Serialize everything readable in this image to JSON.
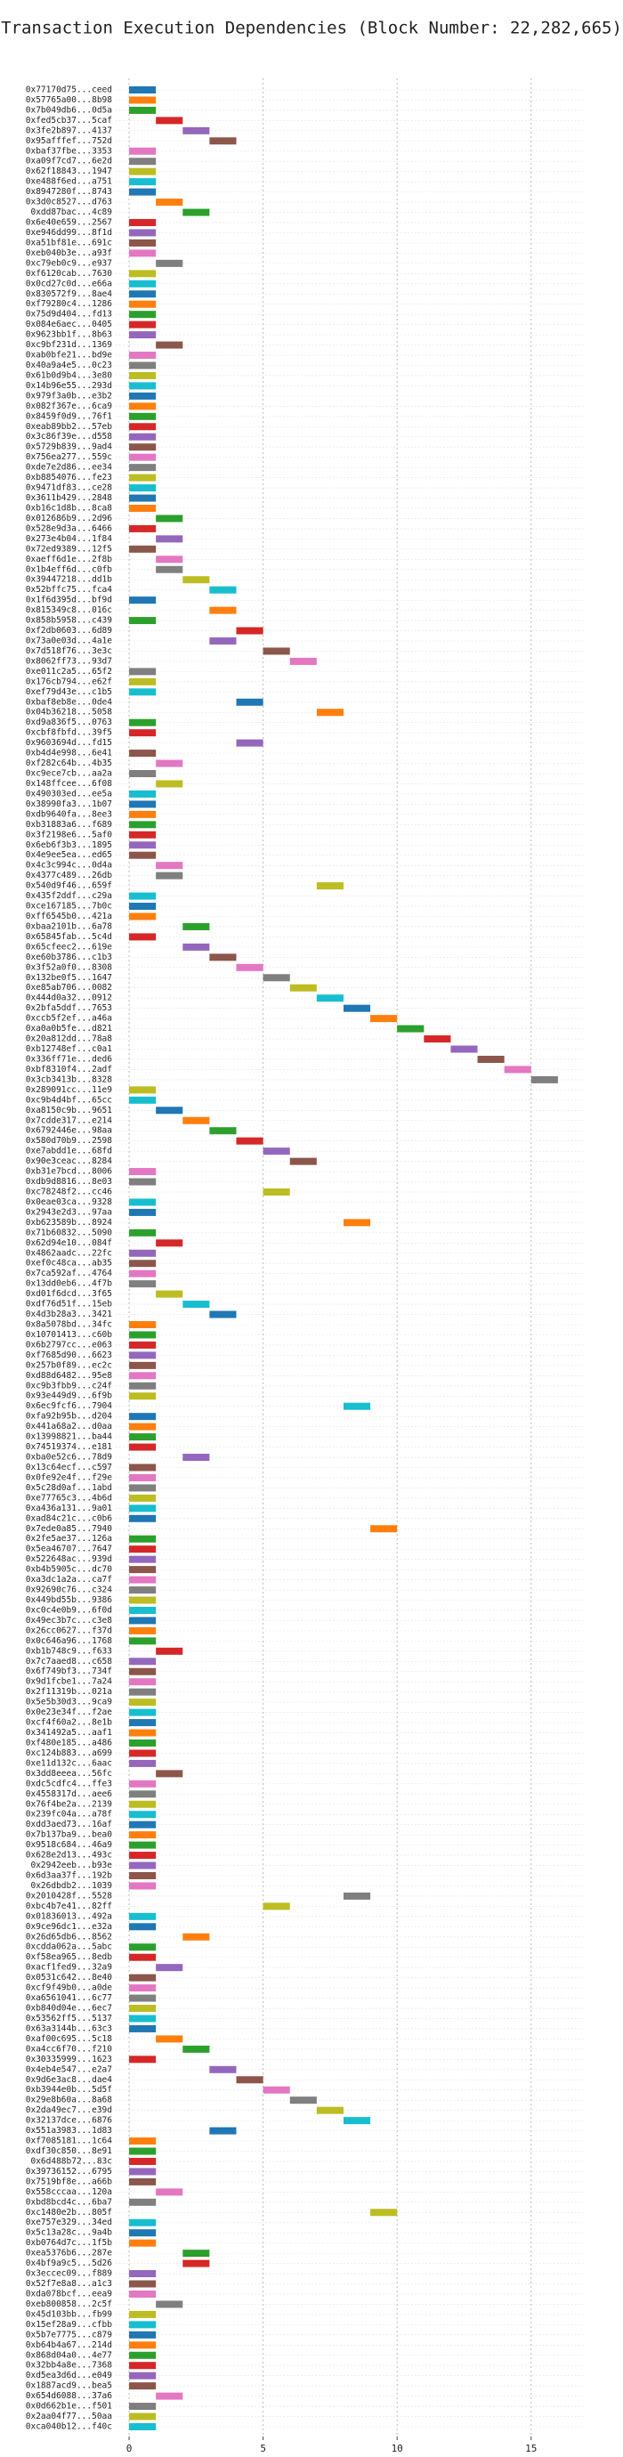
{
  "chart_data": {
    "type": "gantt",
    "title": "Transaction Execution Dependencies (Block Number: 22,282,665)",
    "categories": [
      "0x77170d75...ceed",
      "0x57765a00...8b98",
      "0x7b049db6...0d5a",
      "0xfed5cb37...5caf",
      "0x3fe2b897...4137",
      "0x95afffef...752d",
      "0xbaf37fbe...3353",
      "0xa09f7cd7...6e2d",
      "0x62f18843...1947",
      "0xe488f6ed...a751",
      "0x8947280f...8743",
      "0x3d0c8527...d763",
      "0xdd87bac...4c89",
      "0x6e40e659...2567",
      "0xe946dd99...8f1d",
      "0xa51bf81e...691c",
      "0xeb040b3e...a93f",
      "0xc79eb0c9...e937",
      "0xf6120cab...7630",
      "0x0cd27c0d...e66a",
      "0x830572f9...8ae4",
      "0xf79280c4...1286",
      "0x75d9d404...fd13",
      "0x084e6aec...0405",
      "0x9623bb1f...8b63",
      "0xc9bf231d...1369",
      "0xab0bfe21...bd9e",
      "0x40a9a4e5...0c23",
      "0x61b0d9b4...3e80",
      "0x14b96e55...293d",
      "0x979f3a0b...e3b2",
      "0x082f367e...6ca9",
      "0x8459f0d9...76f1",
      "0xeab89bb2...57eb",
      "0x3c86f39e...d558",
      "0x5729b839...9ad4",
      "0x756ea277...559c",
      "0xde7e2d86...ee34",
      "0xb8854076...fe23",
      "0x9471df83...ce28",
      "0x3611b429...2848",
      "0xb16c1d8b...8ca8",
      "0x012686b9...2d96",
      "0x528e9d3a...6466",
      "0x273e4b04...1f84",
      "0x72ed9389...12f5",
      "0xaeff6d1e...2f8b",
      "0x1b4eff6d...c0fb",
      "0x39447218...dd1b",
      "0x52bffc75...fca4",
      "0x1f6d395d...bf9d",
      "0x815349c8...016c",
      "0x858b5958...c439",
      "0xf2db0603...6d89",
      "0x73a0e03d...4a1e",
      "0x7d518f76...3e3c",
      "0x8062ff73...93d7",
      "0xe011c2a5...65f2",
      "0x176cb794...e62f",
      "0xef79d43e...c1b5",
      "0xbaf8eb8e...0de4",
      "0x04b36218...5058",
      "0xd9a836f5...0763",
      "0xcbf8fbfd...39f5",
      "0x9603694d...fd15",
      "0xb4d4e998...6e41",
      "0xf282c64b...4b35",
      "0xc9ece7cb...aa2a",
      "0x148ffcee...6f08",
      "0x490303ed...ee5a",
      "0x38990fa3...1b07",
      "0xdb9640fa...8ee3",
      "0xb31883a6...f689",
      "0x3f2198e6...5af0",
      "0x6eb6f3b3...1895",
      "0x4e9ee5ea...ed65",
      "0x4c3c994c...0d4a",
      "0x4377c489...26db",
      "0x540d9f46...659f",
      "0x435f2ddf...c29a",
      "0xce167185...7b0c",
      "0xff6545b0...421a",
      "0xbaa2101b...6a78",
      "0x65845fab...5c4d",
      "0x65cfeec2...619e",
      "0xe60b3786...c1b3",
      "0x3f52a0f0...8308",
      "0x132be0f5...1647",
      "0xe85ab706...0082",
      "0x444d0a32...0912",
      "0x2bfa5ddf...7653",
      "0xccb5f2ef...a46a",
      "0xa0a0b5fe...d821",
      "0x20a812dd...78a8",
      "0xb12748ef...c0a1",
      "0x336ff71e...ded6",
      "0xbf8310f4...2adf",
      "0x3cb3413b...8328",
      "0x289091cc...11e9",
      "0xc9b4d4bf...65cc",
      "0xa8150c9b...9651",
      "0x7cdde317...e214",
      "0x6792446e...98aa",
      "0x580d70b9...2598",
      "0xe7abdd1e...68fd",
      "0x90e3ceac...8284",
      "0xb31e7bcd...8006",
      "0xdb9d8816...8e03",
      "0xc78248f2...cc46",
      "0x0eae03ca...9328",
      "0x2943e2d3...97aa",
      "0xb623589b...8924",
      "0x71b60832...5090",
      "0x62d94e10...084f",
      "0x4862aadc...22fc",
      "0xef0c48ca...ab35",
      "0x7ca592af...4764",
      "0x13dd0eb6...4f7b",
      "0xd01f6dcd...3f65",
      "0xdf76d51f...15eb",
      "0x4d3b28a3...3421",
      "0x8a5078bd...34fc",
      "0x10701413...c60b",
      "0x6b2797cc...e063",
      "0xf7685d90...6623",
      "0x257b0f89...ec2c",
      "0xd88d6482...95e8",
      "0xc9b3fbb9...c24f",
      "0x93e449d9...6f9b",
      "0x6ec9fcf6...7904",
      "0xfa92b95b...d204",
      "0x441a68a2...d0aa",
      "0x13998821...ba44",
      "0x74519374...e181",
      "0xba0e52c6...78d9",
      "0x13c64ecf...c597",
      "0x0fe92e4f...f29e",
      "0x5c28d0af...1abd",
      "0xe77765c3...4b6d",
      "0xa436a131...9a01",
      "0xad84c21c...c0b6",
      "0x7ede0a85...7940",
      "0x2fe5ae37...126a",
      "0x5ea46707...7647",
      "0x522648ac...939d",
      "0xb4b5905c...dc70",
      "0xa3dc1a2a...ca7f",
      "0x92690c76...c324",
      "0x449bd55b...9386",
      "0xc0c4e0b9...6f0d",
      "0x49ec3b7c...c3e8",
      "0x26cc0627...f37d",
      "0x0c646a96...1768",
      "0xb1b748c9...f633",
      "0x7c7aaed8...c658",
      "0x6f749bf3...734f",
      "0x9d1fcbe1...7a24",
      "0x2f11319b...021a",
      "0x5e5b30d3...9ca9",
      "0x0e23e34f...f2ae",
      "0xcf4f60a2...8e1b",
      "0x341492a5...aaf1",
      "0xf480e185...a486",
      "0xc124b883...a699",
      "0xe11d132c...6aac",
      "0x3dd8eeea...56fc",
      "0xdc5cdfc4...ffe3",
      "0x4558317d...aee6",
      "0x76f4be2a...2139",
      "0x239fc04a...a78f",
      "0xdd3aed73...16af",
      "0x7b137ba9...bea0",
      "0x9518c684...46a9",
      "0x628e2d13...493c",
      "0x2942eeb...b93e",
      "0x6d3aa37f...192b",
      "0x26dbdb2...1039",
      "0x2010428f...5528",
      "0xbc4b7e41...82ff",
      "0x01836013...492a",
      "0x9ce96dc1...e32a",
      "0x26d65db6...8562",
      "0xcdda062a...5abc",
      "0xf58ea965...8edb",
      "0xacf1fed9...32a9",
      "0x0531c642...8e40",
      "0xcf9f49b0...a0de",
      "0xa6561041...6c77",
      "0xb840d04e...6ec7",
      "0x53562ff5...5137",
      "0x63a3144b...63c3",
      "0xaf00c695...5c18",
      "0xa4cc6f70...f210",
      "0x30335999...1623",
      "0x4eb4e547...e2a7",
      "0x9d6e3ac8...dae4",
      "0xb3944e0b...5d5f",
      "0x29e8b60a...8a68",
      "0x2da49ec7...e39d",
      "0x32137dce...6876",
      "0x551a3983...1d83",
      "0xf7085181...1c64",
      "0xdf30c850...8e91",
      "0x6d488b72...83c",
      "0x39736152...6795",
      "0x7519bf8e...a66b",
      "0x558cccaa...120a",
      "0xbd8bcd4c...6ba7",
      "0xc1480e2b...805f",
      "0xe757e329...34ed",
      "0x5c13a28c...9a4b",
      "0xb0764d7c...1f5b",
      "0xea5376b6...287e",
      "0x4bf9a9c5...5d26",
      "0x3eccec09...f889",
      "0x52f7e8a8...a1c3",
      "0xda078bcf...eea9",
      "0xeb800858...2c5f",
      "0x45d103bb...fb99",
      "0x15ef28a9...cfbb",
      "0x5b7e7775...c879",
      "0xb64b4a67...214d",
      "0x868d04a0...4e77",
      "0x32bb4a8e...7368",
      "0xd5ea3d6d...e049",
      "0x1887acd9...bea5",
      "0x654d6088...37a6",
      "0x0d662b1e...f501",
      "0x2aa04f77...50aa",
      "0xca040b12...f40c"
    ],
    "values": [
      0,
      0,
      0,
      1,
      2,
      3,
      0,
      0,
      0,
      0,
      0,
      1,
      2,
      0,
      0,
      0,
      0,
      1,
      0,
      0,
      0,
      0,
      0,
      0,
      0,
      1,
      0,
      0,
      0,
      0,
      0,
      0,
      0,
      0,
      0,
      0,
      0,
      0,
      0,
      0,
      0,
      0,
      1,
      0,
      1,
      0,
      1,
      1,
      2,
      3,
      0,
      3,
      0,
      4,
      3,
      5,
      6,
      0,
      0,
      0,
      4,
      7,
      0,
      0,
      4,
      0,
      1,
      0,
      1,
      0,
      0,
      0,
      0,
      0,
      0,
      0,
      1,
      1,
      7,
      0,
      0,
      0,
      2,
      0,
      2,
      3,
      4,
      5,
      6,
      7,
      8,
      9,
      10,
      11,
      12,
      13,
      14,
      15,
      0,
      0,
      1,
      2,
      3,
      4,
      5,
      6,
      0,
      0,
      5,
      0,
      0,
      8,
      0,
      1,
      0,
      0,
      0,
      0,
      1,
      2,
      3,
      0,
      0,
      0,
      0,
      0,
      0,
      0,
      0,
      8,
      0,
      0,
      0,
      0,
      2,
      0,
      0,
      0,
      0,
      0,
      0,
      9,
      0,
      0,
      0,
      0,
      0,
      0,
      0,
      0,
      0,
      0,
      0,
      1,
      0,
      0,
      0,
      0,
      0,
      0,
      0,
      0,
      0,
      0,
      0,
      1,
      0,
      0,
      0,
      0,
      0,
      0,
      0,
      0,
      0,
      0,
      0,
      8,
      5,
      0,
      0,
      2,
      0,
      0,
      1,
      0,
      0,
      0,
      0,
      0,
      0,
      1,
      2,
      0,
      3,
      4,
      5,
      6,
      7,
      8,
      3,
      0,
      0,
      0,
      0,
      0,
      1,
      0,
      9,
      0,
      0,
      0,
      2,
      2,
      0,
      0,
      0,
      1,
      0,
      0,
      0,
      0,
      0,
      0,
      0,
      0,
      1,
      0,
      0,
      0
    ],
    "duration": 1,
    "colors": [
      "#1f77b4",
      "#ff7f0e",
      "#2ca02c",
      "#d62728",
      "#9467bd",
      "#8c564b",
      "#e377c2",
      "#7f7f7f",
      "#bcbd22",
      "#17becf"
    ],
    "xlim": [
      -0.5,
      17
    ],
    "xticks": [
      0,
      5,
      10,
      15
    ],
    "grid": true
  }
}
